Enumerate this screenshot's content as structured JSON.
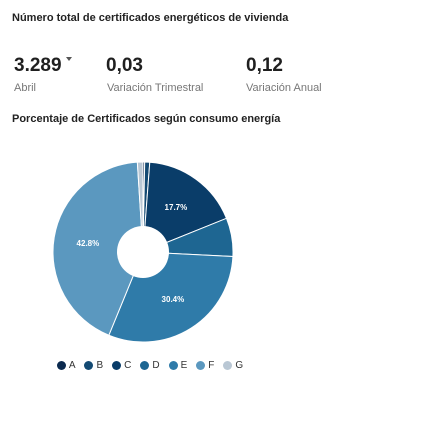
{
  "header": {
    "title": "Número total de certificados energéticos de vivienda"
  },
  "kpis": [
    {
      "value": "3.289",
      "label": "Abril",
      "trend": "down"
    },
    {
      "value": "0,03",
      "label": "Variación Trimestral"
    },
    {
      "value": "0,12",
      "label": "Variación Anual"
    }
  ],
  "chart_section": {
    "title": "Porcentaje de Certificados según consumo energía"
  },
  "colors": {
    "A": "#0b2a4f",
    "B": "#144a73",
    "C": "#0a3d69",
    "D": "#1e6692",
    "E": "#2f7ba9",
    "F": "#5b98bf",
    "G": "#b9c7d4"
  },
  "chart_data": {
    "type": "pie",
    "title": "Porcentaje de Certificados según consumo energía",
    "donut": true,
    "legend_position": "bottom",
    "slices": [
      {
        "name": "A",
        "value": 0.3,
        "label": ""
      },
      {
        "name": "B",
        "value": 0.9,
        "label": ""
      },
      {
        "name": "C",
        "value": 17.7,
        "label": "17.7%"
      },
      {
        "name": "D",
        "value": 6.9,
        "label": ""
      },
      {
        "name": "E",
        "value": 30.4,
        "label": "30.4%"
      },
      {
        "name": "F",
        "value": 42.8,
        "label": "42.8%"
      },
      {
        "name": "G",
        "value": 1.0,
        "label": ""
      }
    ]
  }
}
